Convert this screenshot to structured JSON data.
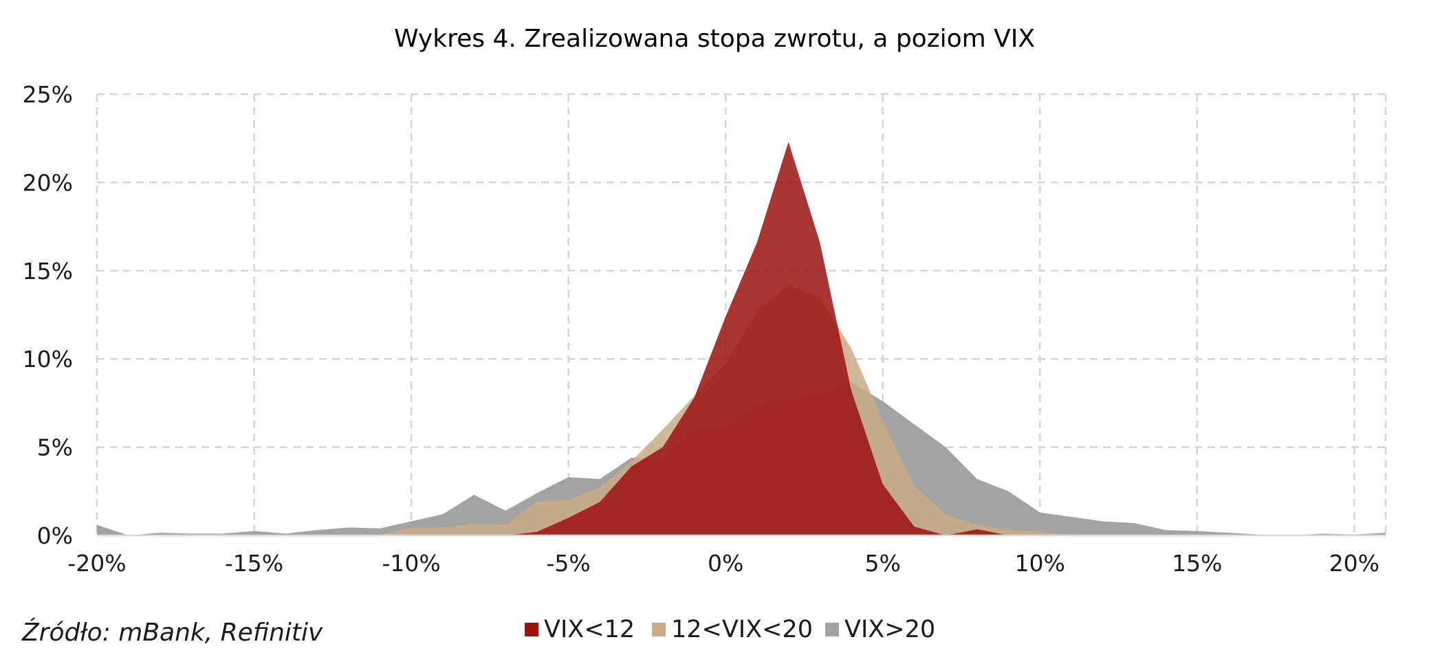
{
  "source_note": "Źródło: mBank, Refinitiv",
  "chart_data": {
    "type": "area",
    "title": "Wykres 4. Zrealizowana stopa zwrotu, a poziom VIX",
    "xlabel": "",
    "ylabel": "",
    "xlim": [
      -20,
      21
    ],
    "ylim": [
      0,
      25
    ],
    "x_ticks": [
      -20,
      -15,
      -10,
      -5,
      0,
      5,
      10,
      15,
      20
    ],
    "x_tick_labels": [
      "-20%",
      "-15%",
      "-10%",
      "-5%",
      "0%",
      "5%",
      "10%",
      "15%",
      "20%"
    ],
    "y_ticks": [
      0,
      5,
      10,
      15,
      20,
      25
    ],
    "y_tick_labels": [
      "0%",
      "5%",
      "10%",
      "15%",
      "20%",
      "25%"
    ],
    "grid": true,
    "legend_position": "bottom",
    "x": [
      -20,
      -19,
      -18,
      -17,
      -16,
      -15,
      -14,
      -13,
      -12,
      -11,
      -10,
      -9,
      -8,
      -7,
      -6,
      -5,
      -4,
      -3,
      -2,
      -1,
      0,
      1,
      2,
      3,
      4,
      5,
      6,
      7,
      8,
      9,
      10,
      11,
      12,
      13,
      14,
      15,
      16,
      17,
      18,
      19,
      20,
      21
    ],
    "series": [
      {
        "name": "VIX>20",
        "color": "#a3a3a3",
        "values": [
          0.6,
          0.0,
          0.15,
          0.1,
          0.1,
          0.25,
          0.1,
          0.3,
          0.45,
          0.4,
          0.8,
          1.2,
          2.3,
          1.4,
          2.4,
          3.3,
          3.2,
          4.4,
          4.3,
          6.0,
          6.0,
          7.4,
          7.7,
          8.0,
          8.7,
          7.6,
          6.3,
          5.0,
          3.2,
          2.5,
          1.3,
          1.05,
          0.8,
          0.7,
          0.3,
          0.25,
          0.15,
          0.05,
          0.0,
          0.1,
          0.05,
          0.15
        ]
      },
      {
        "name": "12<VIX<20",
        "color": "#c9ab86",
        "values": [
          0,
          0,
          0,
          0,
          0,
          0,
          0,
          0,
          0,
          0.05,
          0.45,
          0.45,
          0.65,
          0.6,
          1.9,
          2.0,
          2.7,
          4.2,
          6.0,
          7.9,
          9.7,
          12.7,
          14.2,
          13.5,
          10.6,
          6.5,
          2.8,
          1.2,
          0.6,
          0.3,
          0.2,
          0.05,
          0,
          0,
          0,
          0,
          0,
          0,
          0,
          0,
          0,
          0
        ]
      },
      {
        "name": "VIX<12",
        "color": "#9b130f",
        "values": [
          0,
          0,
          0,
          0,
          0,
          0,
          0,
          0,
          0,
          0,
          0,
          0,
          0,
          0,
          0.2,
          1.0,
          1.9,
          3.9,
          5.0,
          7.8,
          12.4,
          16.6,
          22.3,
          16.6,
          8.2,
          2.9,
          0.5,
          0.0,
          0.35,
          0.0,
          0,
          0,
          0,
          0,
          0,
          0,
          0,
          0,
          0,
          0,
          0,
          0
        ]
      }
    ]
  }
}
